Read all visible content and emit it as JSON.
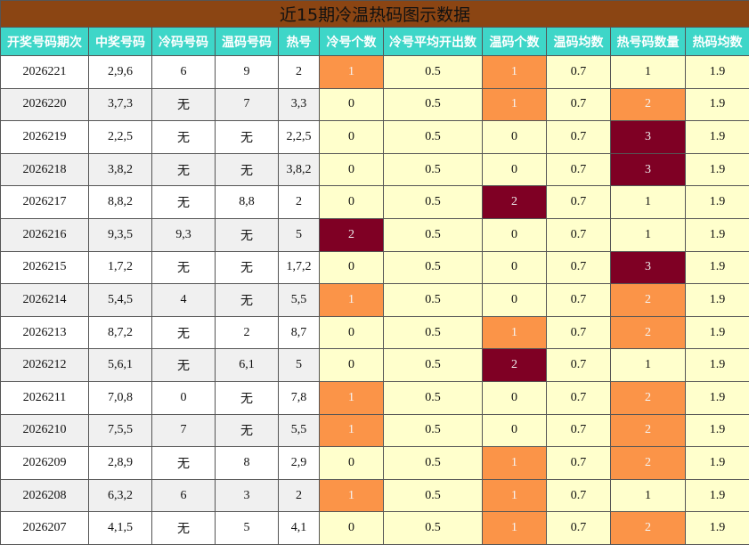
{
  "table": {
    "title": "近15期冷温热码图示数据",
    "headers": [
      "开奖号码期次",
      "中奖号码",
      "冷码号码",
      "温码号码",
      "热号",
      "冷号个数",
      "冷号平均开出数",
      "温码个数",
      "温码均数",
      "热号码数量",
      "热码均数"
    ],
    "rows": [
      [
        "2026221",
        "2,9,6",
        "6",
        "9",
        "2",
        "1",
        "0.5",
        "1",
        "0.7",
        "1",
        "1.9"
      ],
      [
        "2026220",
        "3,7,3",
        "无",
        "7",
        "3,3",
        "0",
        "0.5",
        "1",
        "0.7",
        "2",
        "1.9"
      ],
      [
        "2026219",
        "2,2,5",
        "无",
        "无",
        "2,2,5",
        "0",
        "0.5",
        "0",
        "0.7",
        "3",
        "1.9"
      ],
      [
        "2026218",
        "3,8,2",
        "无",
        "无",
        "3,8,2",
        "0",
        "0.5",
        "0",
        "0.7",
        "3",
        "1.9"
      ],
      [
        "2026217",
        "8,8,2",
        "无",
        "8,8",
        "2",
        "0",
        "0.5",
        "2",
        "0.7",
        "1",
        "1.9"
      ],
      [
        "2026216",
        "9,3,5",
        "9,3",
        "无",
        "5",
        "2",
        "0.5",
        "0",
        "0.7",
        "1",
        "1.9"
      ],
      [
        "2026215",
        "1,7,2",
        "无",
        "无",
        "1,7,2",
        "0",
        "0.5",
        "0",
        "0.7",
        "3",
        "1.9"
      ],
      [
        "2026214",
        "5,4,5",
        "4",
        "无",
        "5,5",
        "1",
        "0.5",
        "0",
        "0.7",
        "2",
        "1.9"
      ],
      [
        "2026213",
        "8,7,2",
        "无",
        "2",
        "8,7",
        "0",
        "0.5",
        "1",
        "0.7",
        "2",
        "1.9"
      ],
      [
        "2026212",
        "5,6,1",
        "无",
        "6,1",
        "5",
        "0",
        "0.5",
        "2",
        "0.7",
        "1",
        "1.9"
      ],
      [
        "2026211",
        "7,0,8",
        "0",
        "无",
        "7,8",
        "1",
        "0.5",
        "0",
        "0.7",
        "2",
        "1.9"
      ],
      [
        "2026210",
        "7,5,5",
        "7",
        "无",
        "5,5",
        "1",
        "0.5",
        "0",
        "0.7",
        "2",
        "1.9"
      ],
      [
        "2026209",
        "2,8,9",
        "无",
        "8",
        "2,9",
        "0",
        "0.5",
        "1",
        "0.7",
        "2",
        "1.9"
      ],
      [
        "2026208",
        "6,3,2",
        "6",
        "3",
        "2",
        "1",
        "0.5",
        "1",
        "0.7",
        "1",
        "1.9"
      ],
      [
        "2026207",
        "4,1,5",
        "无",
        "5",
        "4,1",
        "0",
        "0.5",
        "1",
        "0.7",
        "2",
        "1.9"
      ]
    ]
  }
}
